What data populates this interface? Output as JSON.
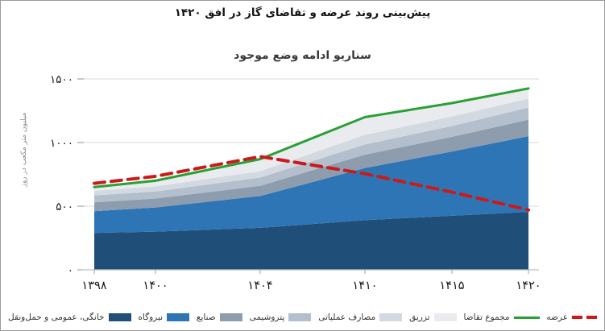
{
  "figure": {
    "title": "پیش‌بینی روند عرضه و تقاضای گاز در افق ۱۴۲۰",
    "chart_subtitle": "سناریو ادامه وضع موجود",
    "y_axis_title": "میلیون متر مکعب در روز"
  },
  "chart_data": {
    "type": "area",
    "stacked": true,
    "title": "سناریو ادامه وضع موجود",
    "figure_title": "پیش‌بینی روند عرضه و تقاضای گاز در افق ۱۴۲۰",
    "xlabel": "",
    "ylabel": "میلیون متر مکعب در روز",
    "grid": "horizontal",
    "legend_position": "bottom",
    "ylim": [
      0,
      1600
    ],
    "categories": [
      1398,
      1400,
      1404,
      1410,
      1415,
      1420
    ],
    "x_tick_labels": [
      "۱۳۹۸",
      "۱۴۰۰",
      "۱۴۰۴",
      "۱۴۱۰",
      "۱۴۱۵",
      "۱۴۲۰"
    ],
    "y_tick_values": [
      0,
      500,
      1000,
      1500
    ],
    "y_tick_labels": [
      "۰",
      "۵۰۰",
      "۱۰۰۰",
      "۱۵۰۰"
    ],
    "series": [
      {
        "name": "خانگی، عمومی و حمل‌ونقل",
        "kind": "stacked-area",
        "color": "#1f4e79",
        "values": [
          290,
          300,
          330,
          390,
          425,
          455
        ]
      },
      {
        "name": "نیروگاه",
        "kind": "stacked-area",
        "color": "#2e75b6",
        "values": [
          170,
          190,
          250,
          410,
          505,
          595
        ]
      },
      {
        "name": "صنایع",
        "kind": "stacked-area",
        "color": "#8e9dae",
        "values": [
          70,
          70,
          80,
          105,
          115,
          130
        ]
      },
      {
        "name": "پتروشیمی",
        "kind": "stacked-area",
        "color": "#b3bfcc",
        "values": [
          55,
          55,
          65,
          80,
          85,
          95
        ]
      },
      {
        "name": "مصارف عملیاتی",
        "kind": "stacked-area",
        "color": "#d3d9e0",
        "values": [
          35,
          40,
          50,
          75,
          75,
          70
        ]
      },
      {
        "name": "تزریق",
        "kind": "stacked-area",
        "color": "#e9ebee",
        "values": [
          30,
          45,
          95,
          140,
          105,
          80
        ]
      },
      {
        "name": "مجموع تقاضا",
        "kind": "line",
        "style": "solid",
        "color": "#28a033",
        "values": [
          650,
          700,
          870,
          1200,
          1310,
          1425
        ]
      },
      {
        "name": "عرضه",
        "kind": "line",
        "style": "dashed",
        "color": "#cc1a1a",
        "values": [
          680,
          735,
          890,
          755,
          610,
          470
        ]
      }
    ],
    "colors": {
      "grid_line": "#d9d9d9",
      "axis_line": "#bfbfbf",
      "tick_text": "#1a1a1a",
      "demand_line": "#28a033",
      "supply_line": "#cc1a1a"
    }
  }
}
